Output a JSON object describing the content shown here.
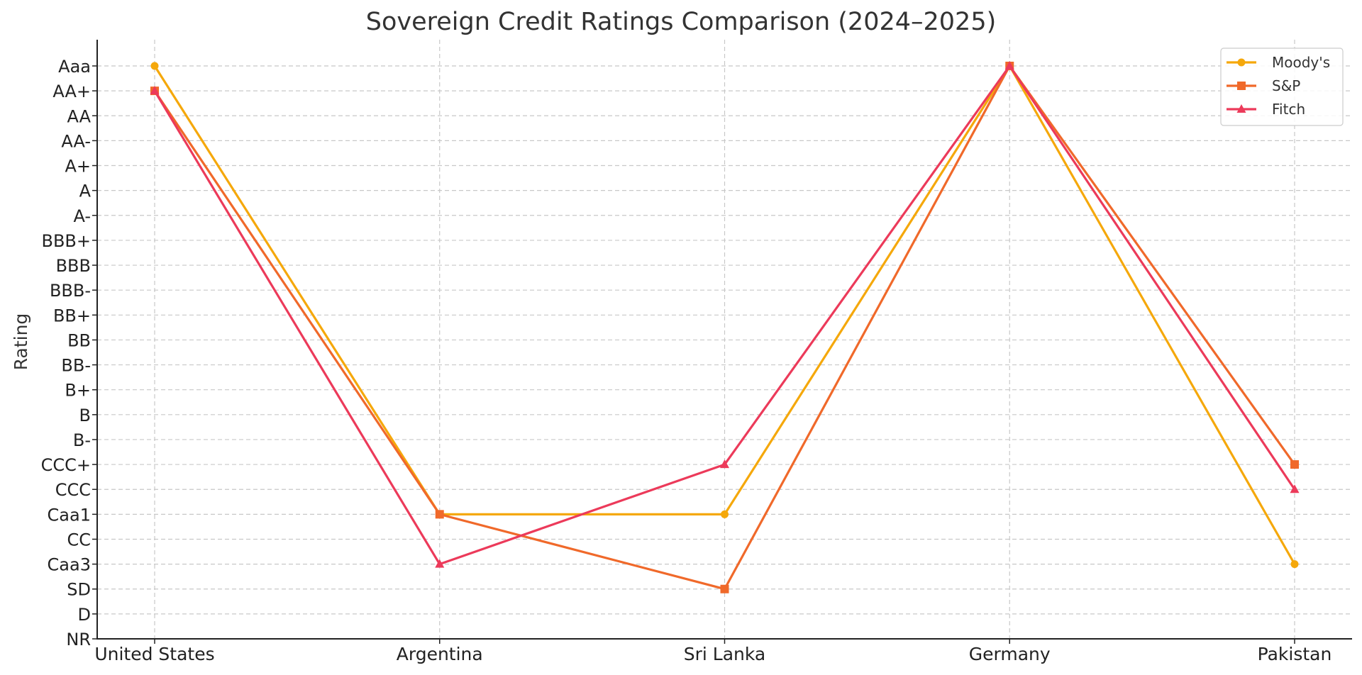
{
  "chart_data": {
    "type": "line",
    "title": "Sovereign Credit Ratings Comparison (2024–2025)",
    "xlabel": "",
    "ylabel": "Rating",
    "categories": [
      "United States",
      "Argentina",
      "Sri Lanka",
      "Germany",
      "Pakistan"
    ],
    "y_ticks": [
      "NR",
      "D",
      "SD",
      "Caa3",
      "CC",
      "Caa1",
      "CCC",
      "CCC+",
      "B-",
      "B",
      "B+",
      "BB-",
      "BB",
      "BB+",
      "BBB-",
      "BBB",
      "BBB+",
      "A-",
      "A",
      "A+",
      "AA-",
      "AA",
      "AA+",
      "Aaa"
    ],
    "ylim": [
      0,
      23
    ],
    "grid": true,
    "legend_position": "top-right",
    "series": [
      {
        "name": "Moody's",
        "color": "#f5a80b",
        "marker": "circle",
        "values": [
          23,
          5,
          5,
          23,
          3
        ]
      },
      {
        "name": "S&P",
        "color": "#f0692a",
        "marker": "square",
        "values": [
          22,
          5,
          2,
          23,
          7
        ]
      },
      {
        "name": "Fitch",
        "color": "#ec3a5a",
        "marker": "triangle",
        "values": [
          22,
          3,
          7,
          23,
          6
        ]
      }
    ]
  }
}
